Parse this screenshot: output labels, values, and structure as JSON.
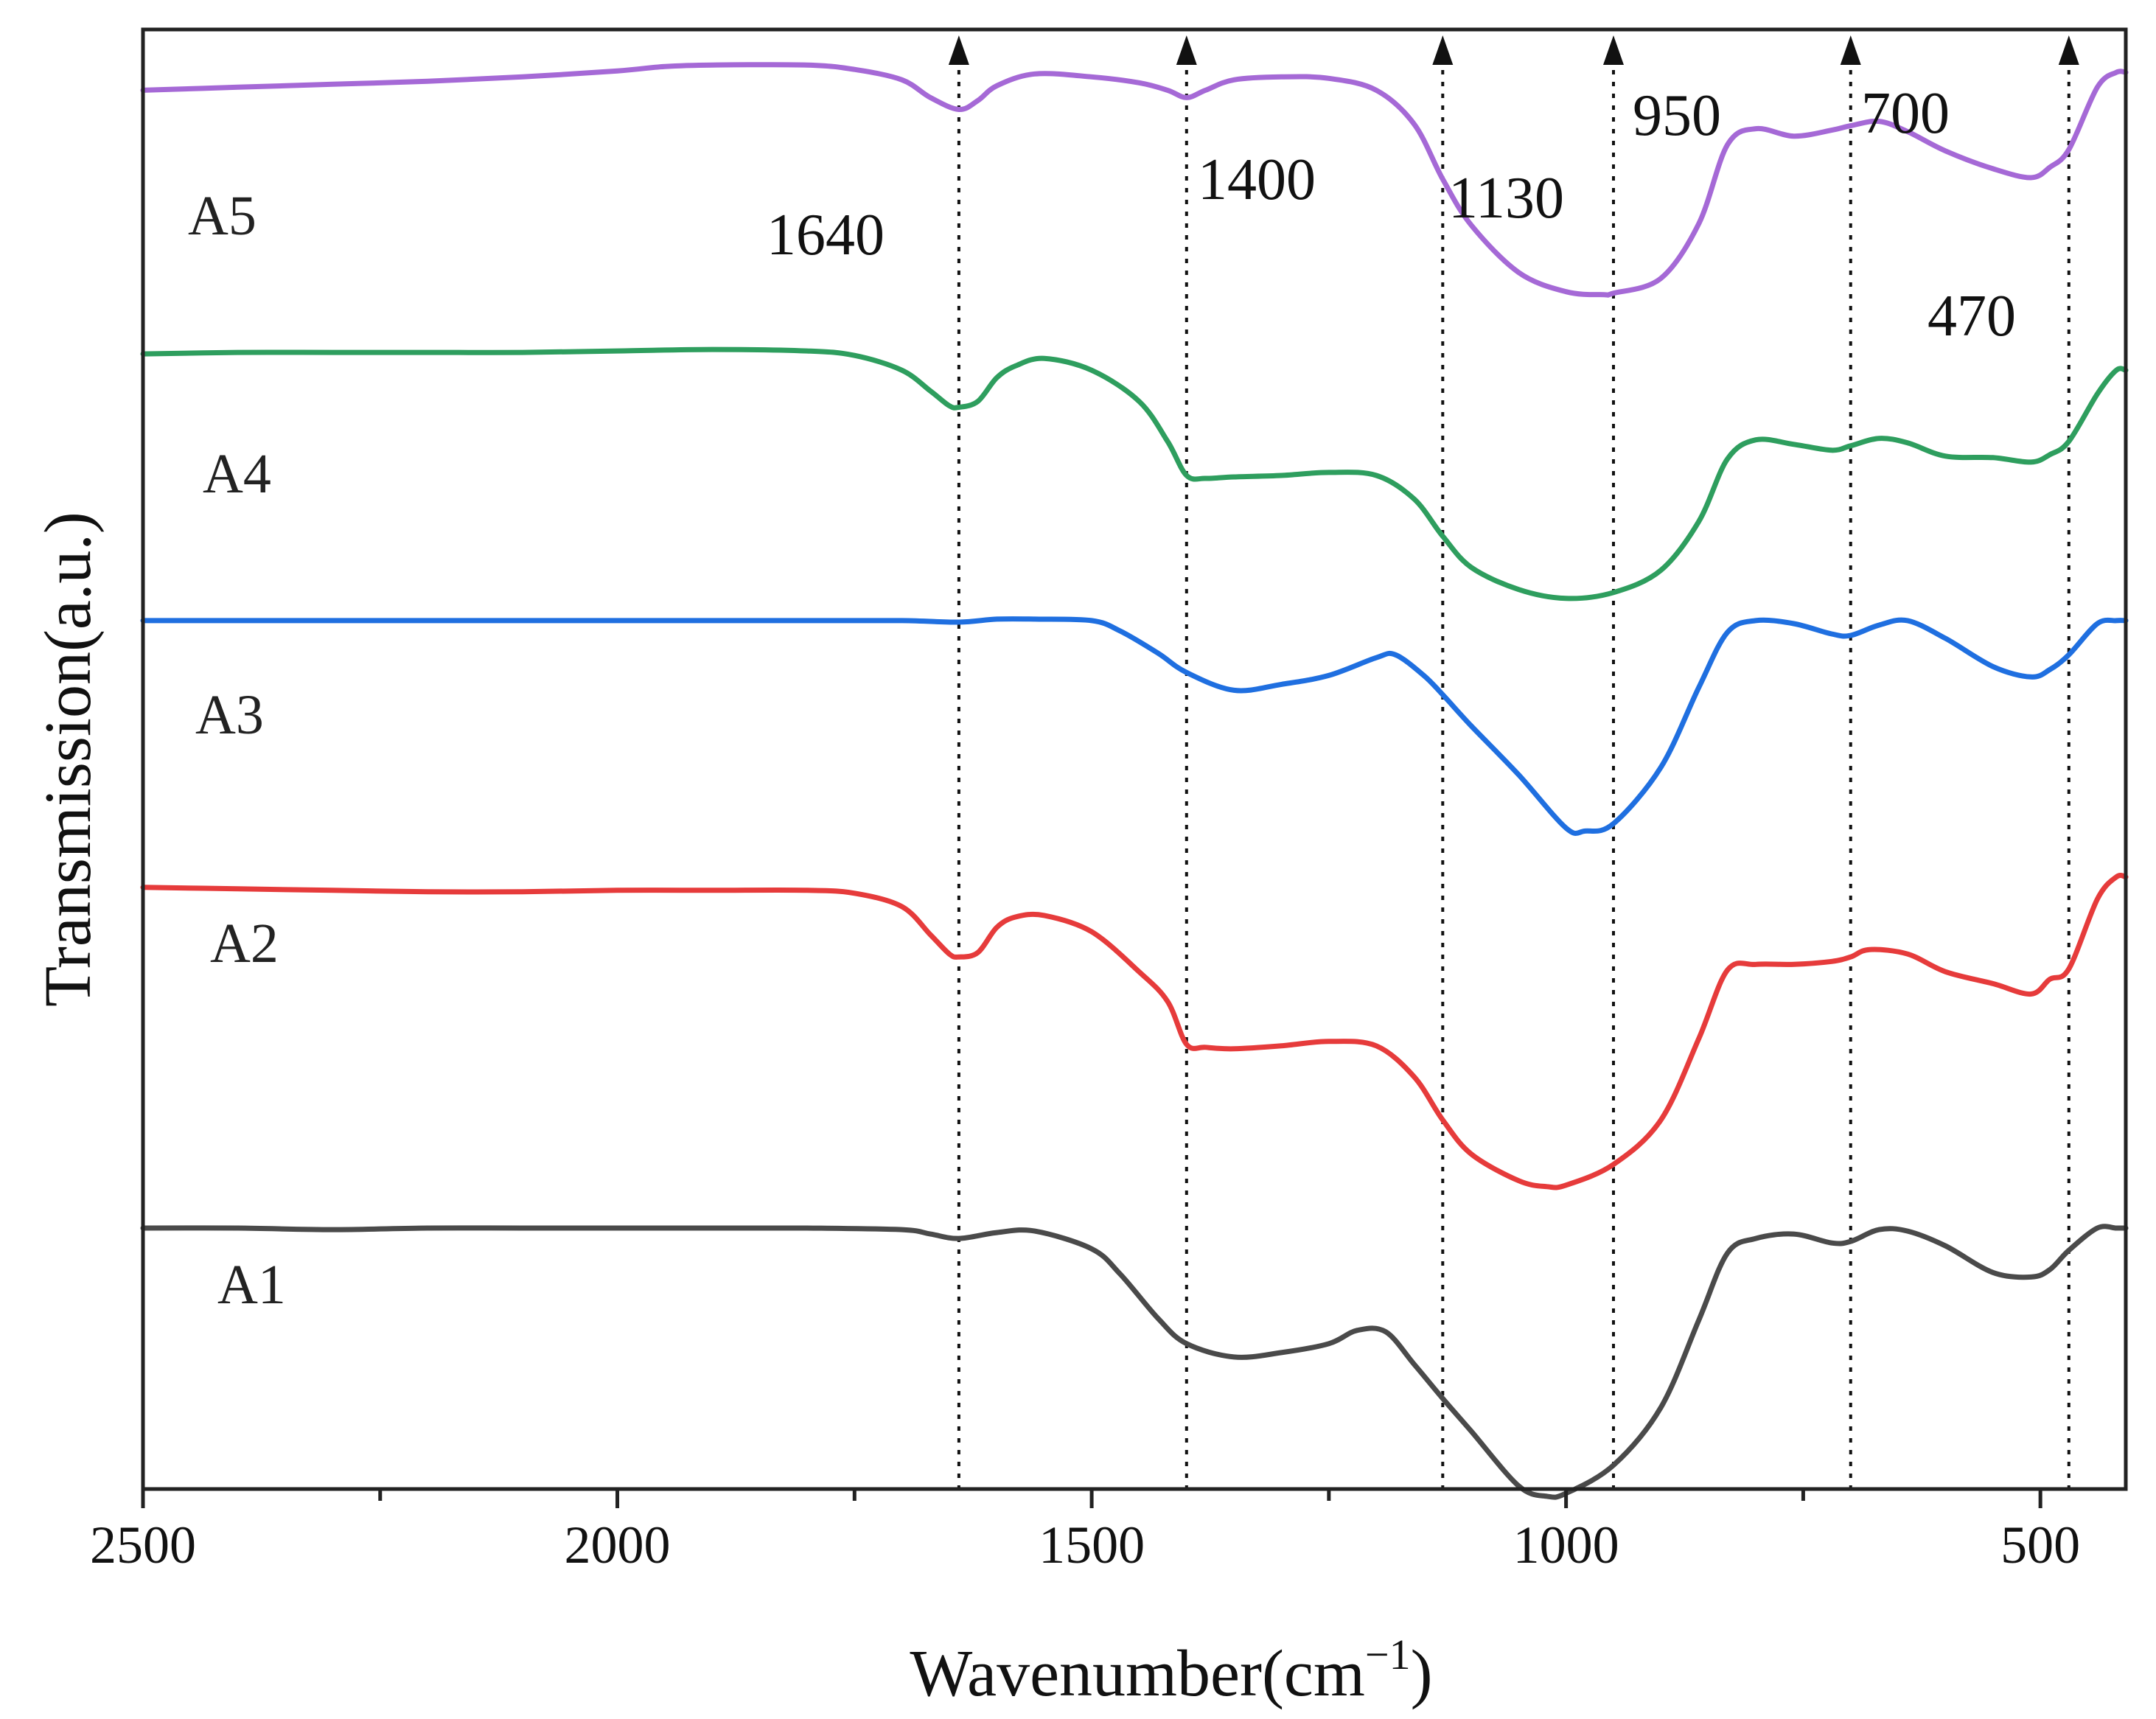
{
  "chart_data": {
    "type": "line",
    "title": "",
    "xlabel": "Wavenumber(cm",
    "xlabel_superscript": "−1",
    "xlabel_close": ")",
    "ylabel": "Transmission(a.u.)",
    "xlim": [
      2500,
      410
    ],
    "x_reversed": true,
    "x_ticks": [
      2500,
      2000,
      1500,
      1000,
      500
    ],
    "y_ticks": false,
    "grid": false,
    "y_units": "arbitrary, stacked with offsets",
    "peak_markers": [
      {
        "x": 1640,
        "label": "1640"
      },
      {
        "x": 1400,
        "label": "1400"
      },
      {
        "x": 1130,
        "label": "1130"
      },
      {
        "x": 950,
        "label": "950"
      },
      {
        "x": 700,
        "label": "700"
      },
      {
        "x": 470,
        "label": "470"
      }
    ],
    "series": [
      {
        "name": "A5",
        "color": "#a569d6",
        "points": [
          [
            2500,
            96.3
          ],
          [
            2400,
            96.5
          ],
          [
            2300,
            96.7
          ],
          [
            2200,
            96.9
          ],
          [
            2100,
            97.2
          ],
          [
            2000,
            97.6
          ],
          [
            1950,
            97.9
          ],
          [
            1900,
            98.0
          ],
          [
            1800,
            98.0
          ],
          [
            1750,
            97.7
          ],
          [
            1700,
            97.0
          ],
          [
            1670,
            95.8
          ],
          [
            1640,
            95.0
          ],
          [
            1620,
            95.6
          ],
          [
            1600,
            96.6
          ],
          [
            1560,
            97.4
          ],
          [
            1500,
            97.2
          ],
          [
            1450,
            96.8
          ],
          [
            1420,
            96.3
          ],
          [
            1400,
            95.8
          ],
          [
            1380,
            96.3
          ],
          [
            1350,
            97.0
          ],
          [
            1300,
            97.2
          ],
          [
            1250,
            97.1
          ],
          [
            1200,
            96.3
          ],
          [
            1160,
            94.0
          ],
          [
            1130,
            90.3
          ],
          [
            1100,
            87.2
          ],
          [
            1050,
            84.0
          ],
          [
            1000,
            82.7
          ],
          [
            960,
            82.5
          ],
          [
            950,
            82.6
          ],
          [
            900,
            83.6
          ],
          [
            860,
            87.3
          ],
          [
            830,
            92.6
          ],
          [
            800,
            93.7
          ],
          [
            760,
            93.2
          ],
          [
            720,
            93.6
          ],
          [
            700,
            93.9
          ],
          [
            670,
            94.2
          ],
          [
            640,
            93.5
          ],
          [
            600,
            92.2
          ],
          [
            550,
            91.0
          ],
          [
            510,
            90.4
          ],
          [
            490,
            91.1
          ],
          [
            470,
            92.3
          ],
          [
            440,
            96.5
          ],
          [
            420,
            97.5
          ],
          [
            410,
            97.5
          ]
        ]
      },
      {
        "name": "A4",
        "color": "#2e9e5e",
        "points": [
          [
            2500,
            78.5
          ],
          [
            2400,
            78.6
          ],
          [
            2300,
            78.6
          ],
          [
            2200,
            78.6
          ],
          [
            2100,
            78.6
          ],
          [
            2000,
            78.7
          ],
          [
            1900,
            78.8
          ],
          [
            1800,
            78.7
          ],
          [
            1750,
            78.4
          ],
          [
            1700,
            77.4
          ],
          [
            1670,
            76.0
          ],
          [
            1650,
            75.0
          ],
          [
            1640,
            74.9
          ],
          [
            1620,
            75.3
          ],
          [
            1600,
            76.9
          ],
          [
            1580,
            77.7
          ],
          [
            1550,
            78.2
          ],
          [
            1500,
            77.4
          ],
          [
            1450,
            75.3
          ],
          [
            1420,
            72.6
          ],
          [
            1400,
            70.3
          ],
          [
            1380,
            70.1
          ],
          [
            1350,
            70.2
          ],
          [
            1300,
            70.3
          ],
          [
            1250,
            70.5
          ],
          [
            1200,
            70.3
          ],
          [
            1160,
            68.7
          ],
          [
            1130,
            66.2
          ],
          [
            1100,
            64.1
          ],
          [
            1050,
            62.6
          ],
          [
            1000,
            62.0
          ],
          [
            950,
            62.4
          ],
          [
            900,
            63.9
          ],
          [
            860,
            67.2
          ],
          [
            830,
            71.4
          ],
          [
            800,
            72.7
          ],
          [
            760,
            72.4
          ],
          [
            720,
            72.0
          ],
          [
            700,
            72.3
          ],
          [
            670,
            72.8
          ],
          [
            640,
            72.5
          ],
          [
            600,
            71.6
          ],
          [
            550,
            71.5
          ],
          [
            510,
            71.2
          ],
          [
            490,
            71.7
          ],
          [
            470,
            72.6
          ],
          [
            440,
            75.8
          ],
          [
            420,
            77.4
          ],
          [
            410,
            77.4
          ]
        ]
      },
      {
        "name": "A3",
        "color": "#1f6fe0",
        "points": [
          [
            2500,
            60.5
          ],
          [
            2400,
            60.5
          ],
          [
            2300,
            60.5
          ],
          [
            2200,
            60.5
          ],
          [
            2100,
            60.5
          ],
          [
            2000,
            60.5
          ],
          [
            1900,
            60.5
          ],
          [
            1800,
            60.5
          ],
          [
            1700,
            60.5
          ],
          [
            1640,
            60.4
          ],
          [
            1600,
            60.6
          ],
          [
            1560,
            60.6
          ],
          [
            1500,
            60.5
          ],
          [
            1470,
            59.8
          ],
          [
            1430,
            58.3
          ],
          [
            1400,
            57.0
          ],
          [
            1350,
            55.8
          ],
          [
            1300,
            56.2
          ],
          [
            1250,
            56.8
          ],
          [
            1200,
            58.0
          ],
          [
            1180,
            58.2
          ],
          [
            1150,
            56.8
          ],
          [
            1130,
            55.5
          ],
          [
            1100,
            53.4
          ],
          [
            1050,
            50.1
          ],
          [
            1000,
            46.5
          ],
          [
            980,
            46.3
          ],
          [
            950,
            46.8
          ],
          [
            900,
            50.6
          ],
          [
            860,
            56.0
          ],
          [
            830,
            59.7
          ],
          [
            800,
            60.5
          ],
          [
            760,
            60.3
          ],
          [
            720,
            59.6
          ],
          [
            700,
            59.5
          ],
          [
            670,
            60.2
          ],
          [
            640,
            60.5
          ],
          [
            600,
            59.3
          ],
          [
            550,
            57.4
          ],
          [
            510,
            56.7
          ],
          [
            490,
            57.2
          ],
          [
            470,
            58.2
          ],
          [
            440,
            60.3
          ],
          [
            420,
            60.5
          ],
          [
            410,
            60.5
          ]
        ]
      },
      {
        "name": "A2",
        "color": "#e63b3b",
        "points": [
          [
            2500,
            42.5
          ],
          [
            2400,
            42.4
          ],
          [
            2300,
            42.3
          ],
          [
            2200,
            42.2
          ],
          [
            2100,
            42.2
          ],
          [
            2000,
            42.3
          ],
          [
            1900,
            42.3
          ],
          [
            1800,
            42.3
          ],
          [
            1750,
            42.1
          ],
          [
            1700,
            41.2
          ],
          [
            1670,
            39.3
          ],
          [
            1650,
            38.0
          ],
          [
            1640,
            37.8
          ],
          [
            1620,
            38.1
          ],
          [
            1600,
            39.8
          ],
          [
            1580,
            40.5
          ],
          [
            1550,
            40.6
          ],
          [
            1500,
            39.5
          ],
          [
            1450,
            36.8
          ],
          [
            1420,
            34.8
          ],
          [
            1400,
            31.9
          ],
          [
            1380,
            31.7
          ],
          [
            1350,
            31.6
          ],
          [
            1300,
            31.8
          ],
          [
            1250,
            32.1
          ],
          [
            1200,
            31.8
          ],
          [
            1160,
            29.7
          ],
          [
            1130,
            26.8
          ],
          [
            1100,
            24.5
          ],
          [
            1050,
            22.7
          ],
          [
            1020,
            22.3
          ],
          [
            1000,
            22.4
          ],
          [
            950,
            23.8
          ],
          [
            900,
            26.8
          ],
          [
            860,
            32.3
          ],
          [
            830,
            36.9
          ],
          [
            800,
            37.3
          ],
          [
            760,
            37.3
          ],
          [
            720,
            37.5
          ],
          [
            700,
            37.8
          ],
          [
            680,
            38.3
          ],
          [
            640,
            38.0
          ],
          [
            600,
            36.8
          ],
          [
            550,
            36.0
          ],
          [
            510,
            35.3
          ],
          [
            490,
            36.3
          ],
          [
            470,
            37.0
          ],
          [
            440,
            41.7
          ],
          [
            420,
            43.2
          ],
          [
            410,
            43.2
          ]
        ]
      },
      {
        "name": "A1",
        "color": "#4a4a4a",
        "points": [
          [
            2500,
            19.5
          ],
          [
            2400,
            19.5
          ],
          [
            2300,
            19.4
          ],
          [
            2200,
            19.5
          ],
          [
            2100,
            19.5
          ],
          [
            2000,
            19.5
          ],
          [
            1900,
            19.5
          ],
          [
            1800,
            19.5
          ],
          [
            1700,
            19.4
          ],
          [
            1670,
            19.1
          ],
          [
            1640,
            18.8
          ],
          [
            1600,
            19.2
          ],
          [
            1560,
            19.3
          ],
          [
            1500,
            18.1
          ],
          [
            1470,
            16.4
          ],
          [
            1430,
            13.4
          ],
          [
            1400,
            11.7
          ],
          [
            1350,
            10.8
          ],
          [
            1300,
            11.1
          ],
          [
            1250,
            11.7
          ],
          [
            1220,
            12.6
          ],
          [
            1190,
            12.5
          ],
          [
            1160,
            10.3
          ],
          [
            1130,
            8.0
          ],
          [
            1100,
            5.8
          ],
          [
            1050,
            2.1
          ],
          [
            1020,
            1.4
          ],
          [
            1000,
            1.6
          ],
          [
            950,
            3.5
          ],
          [
            900,
            7.4
          ],
          [
            860,
            13.3
          ],
          [
            830,
            17.8
          ],
          [
            800,
            18.8
          ],
          [
            760,
            19.1
          ],
          [
            720,
            18.5
          ],
          [
            700,
            18.6
          ],
          [
            670,
            19.4
          ],
          [
            640,
            19.3
          ],
          [
            600,
            18.3
          ],
          [
            550,
            16.5
          ],
          [
            510,
            16.2
          ],
          [
            490,
            16.7
          ],
          [
            470,
            18.0
          ],
          [
            440,
            19.5
          ],
          [
            420,
            19.5
          ],
          [
            410,
            19.5
          ]
        ]
      }
    ]
  }
}
